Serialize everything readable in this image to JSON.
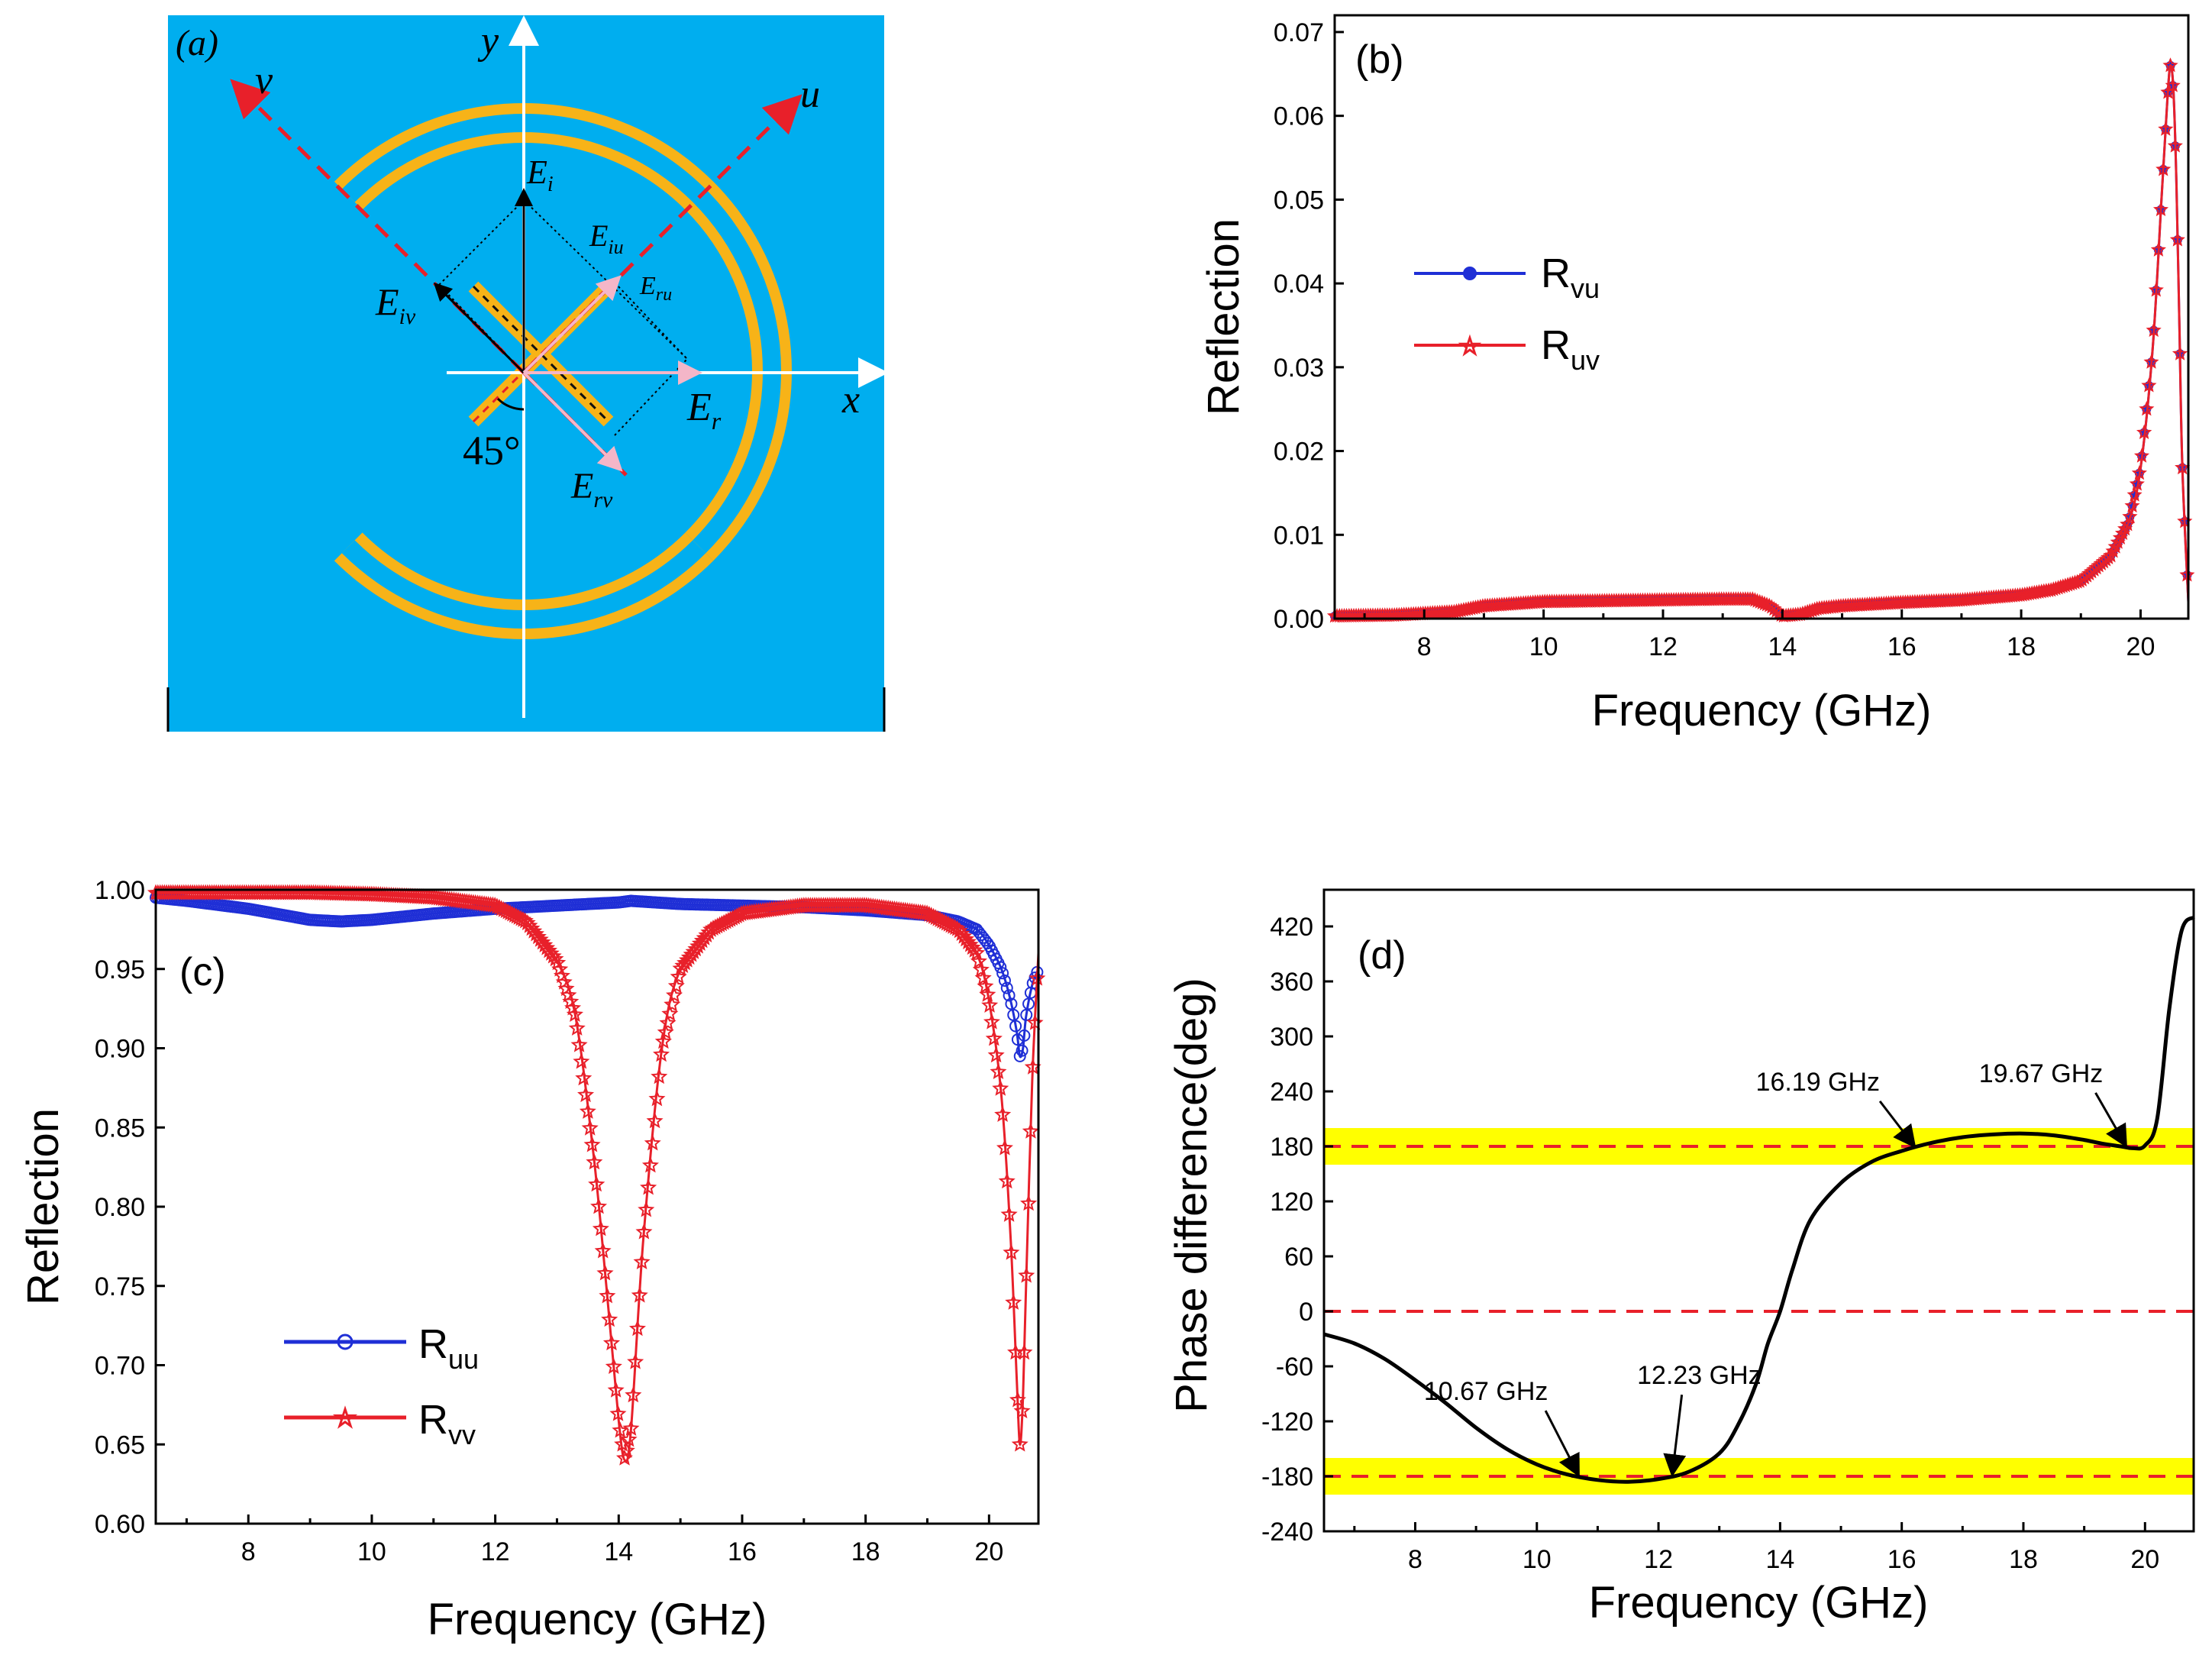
{
  "panel_a": {
    "label": "(a)",
    "axes": {
      "x": "x",
      "y": "y",
      "u": "u",
      "v": "v"
    },
    "fields": {
      "Ei": "E",
      "Ei_sub": "i",
      "Eiu": "E",
      "Eiu_sub": "iu",
      "Eiv": "E",
      "Eiv_sub": "iv",
      "Er": "E",
      "Er_sub": "r",
      "Eru": "E",
      "Eru_sub": "ru",
      "Erv": "E",
      "Erv_sub": "rv"
    },
    "angle": "45°",
    "colors": {
      "background": "#00AEEF",
      "ring": "#F7B318",
      "arrow": "#E8202A"
    }
  },
  "chart_data": [
    {
      "id": "b",
      "type": "line",
      "panel_label": "(b)",
      "xlabel": "Frequency (GHz)",
      "ylabel": "Reflection",
      "xlim": [
        6.5,
        20.8
      ],
      "ylim": [
        0,
        0.072
      ],
      "xticks": [
        8,
        10,
        12,
        14,
        16,
        18,
        20
      ],
      "yticks": [
        0.0,
        0.01,
        0.02,
        0.03,
        0.04,
        0.05,
        0.06,
        0.07
      ],
      "ytick_labels": [
        "0.00",
        "0.01",
        "0.02",
        "0.03",
        "0.04",
        "0.05",
        "0.06",
        "0.07"
      ],
      "legend": [
        {
          "main": "R",
          "sub": "vu",
          "color": "#1F2FD6",
          "marker": "dot"
        },
        {
          "main": "R",
          "sub": "uv",
          "color": "#E8202A",
          "marker": "star"
        }
      ],
      "series": [
        {
          "name": "Rvu",
          "color": "#1F2FD6",
          "x": [
            6.5,
            7.5,
            8.5,
            9,
            10,
            11,
            12,
            13,
            13.5,
            13.8,
            14,
            14.3,
            14.6,
            15,
            16,
            17,
            18,
            18.5,
            19,
            19.5,
            19.8,
            20,
            20.2,
            20.35,
            20.45,
            20.5,
            20.55,
            20.6,
            20.65,
            20.7,
            20.8
          ],
          "y": [
            0.0003,
            0.0004,
            0.0008,
            0.0015,
            0.002,
            0.0021,
            0.0022,
            0.0023,
            0.0023,
            0.0015,
            0.0003,
            0.0005,
            0.0012,
            0.0015,
            0.0019,
            0.0022,
            0.0028,
            0.0034,
            0.0045,
            0.0075,
            0.0115,
            0.018,
            0.032,
            0.05,
            0.062,
            0.066,
            0.063,
            0.052,
            0.035,
            0.018,
            0.002
          ]
        },
        {
          "name": "Ruv",
          "color": "#E8202A",
          "x": [
            6.5,
            7.5,
            8.5,
            9,
            10,
            11,
            12,
            13,
            13.5,
            13.8,
            14,
            14.3,
            14.6,
            15,
            16,
            17,
            18,
            18.5,
            19,
            19.5,
            19.8,
            20,
            20.2,
            20.35,
            20.45,
            20.5,
            20.55,
            20.6,
            20.65,
            20.7,
            20.8
          ],
          "y": [
            0.0003,
            0.0004,
            0.0008,
            0.0015,
            0.002,
            0.0021,
            0.0022,
            0.0023,
            0.0023,
            0.0015,
            0.0003,
            0.0005,
            0.0012,
            0.0015,
            0.0019,
            0.0022,
            0.0028,
            0.0034,
            0.0045,
            0.0075,
            0.0115,
            0.018,
            0.032,
            0.05,
            0.062,
            0.066,
            0.063,
            0.052,
            0.035,
            0.018,
            0.002
          ]
        }
      ]
    },
    {
      "id": "c",
      "type": "line",
      "panel_label": "(c)",
      "xlabel": "Frequency (GHz)",
      "ylabel": "Reflection",
      "xlim": [
        6.5,
        20.8
      ],
      "ylim": [
        0.6,
        1.0
      ],
      "xticks": [
        8,
        10,
        12,
        14,
        16,
        18,
        20
      ],
      "yticks": [
        0.6,
        0.65,
        0.7,
        0.75,
        0.8,
        0.85,
        0.9,
        0.95,
        1.0
      ],
      "ytick_labels": [
        "0.60",
        "0.65",
        "0.70",
        "0.75",
        "0.80",
        "0.85",
        "0.90",
        "0.95",
        "1.00"
      ],
      "legend": [
        {
          "main": "R",
          "sub": "uu",
          "color": "#1F2FD6",
          "marker": "circle"
        },
        {
          "main": "R",
          "sub": "vv",
          "color": "#E8202A",
          "marker": "star"
        }
      ],
      "series": [
        {
          "name": "Ruu",
          "color": "#1F2FD6",
          "x": [
            6.5,
            7,
            8,
            9,
            9.5,
            10,
            11,
            12,
            13,
            14,
            14.2,
            15,
            16,
            17,
            18,
            19,
            19.5,
            19.8,
            20,
            20.2,
            20.35,
            20.45,
            20.5,
            20.55,
            20.6,
            20.7,
            20.8
          ],
          "y": [
            0.995,
            0.993,
            0.988,
            0.981,
            0.98,
            0.981,
            0.985,
            0.988,
            0.99,
            0.992,
            0.993,
            0.991,
            0.99,
            0.989,
            0.987,
            0.984,
            0.98,
            0.975,
            0.965,
            0.95,
            0.93,
            0.91,
            0.895,
            0.9,
            0.92,
            0.94,
            0.95
          ]
        },
        {
          "name": "Rvv",
          "color": "#E8202A",
          "x": [
            6.5,
            8,
            9,
            10,
            11,
            12,
            12.5,
            13,
            13.3,
            13.6,
            13.8,
            14,
            14.1,
            14.2,
            14.4,
            14.7,
            15,
            15.5,
            16,
            17,
            18,
            19,
            19.5,
            19.8,
            20,
            20.2,
            20.35,
            20.45,
            20.5,
            20.55,
            20.6,
            20.7,
            20.8
          ],
          "y": [
            0.998,
            0.998,
            0.998,
            0.997,
            0.995,
            0.99,
            0.98,
            0.955,
            0.92,
            0.83,
            0.75,
            0.665,
            0.64,
            0.66,
            0.78,
            0.9,
            0.95,
            0.975,
            0.985,
            0.99,
            0.99,
            0.985,
            0.975,
            0.96,
            0.93,
            0.87,
            0.78,
            0.69,
            0.65,
            0.68,
            0.75,
            0.88,
            0.96
          ]
        }
      ]
    },
    {
      "id": "d",
      "type": "line",
      "panel_label": "(d)",
      "xlabel": "Frequency (GHz)",
      "ylabel": "Phase difference(deg)",
      "xlim": [
        6.5,
        20.8
      ],
      "ylim": [
        -240,
        460
      ],
      "xticks": [
        8,
        10,
        12,
        14,
        16,
        18,
        20
      ],
      "yticks": [
        -240,
        -180,
        -120,
        -60,
        0,
        60,
        120,
        180,
        240,
        300,
        360,
        420
      ],
      "ytick_labels": [
        "-240",
        "-180",
        "-120",
        "-60",
        "0",
        "60",
        "120",
        "180",
        "240",
        "300",
        "360",
        "420"
      ],
      "bands": [
        {
          "y0": 160,
          "y1": 200,
          "color": "#FFFF00"
        },
        {
          "y0": -200,
          "y1": -160,
          "color": "#FFFF00"
        }
      ],
      "reference_lines": [
        {
          "y": 180,
          "color": "#E8202A"
        },
        {
          "y": 0,
          "color": "#E8202A"
        },
        {
          "y": -180,
          "color": "#E8202A"
        }
      ],
      "annotations": [
        {
          "text": "10.67 GHz",
          "x": 10.67,
          "y": -180
        },
        {
          "text": "12.23 GHz",
          "x": 12.23,
          "y": -180
        },
        {
          "text": "16.19 GHz",
          "x": 16.19,
          "y": 180
        },
        {
          "text": "19.67 GHz",
          "x": 19.67,
          "y": 180
        }
      ],
      "series": [
        {
          "name": "Phase difference",
          "color": "#000000",
          "x": [
            6.5,
            7,
            7.5,
            8,
            8.5,
            9,
            9.5,
            10,
            10.5,
            11,
            11.5,
            12,
            12.5,
            13,
            13.3,
            13.6,
            13.8,
            14,
            14.2,
            14.5,
            15,
            15.5,
            16,
            16.5,
            17,
            17.5,
            18,
            18.5,
            19,
            19.3,
            19.6,
            19.8,
            20,
            20.2,
            20.4,
            20.6,
            20.8
          ],
          "y": [
            -25,
            -35,
            -52,
            -75,
            -100,
            -127,
            -150,
            -167,
            -178,
            -184,
            -186,
            -183,
            -175,
            -155,
            -125,
            -80,
            -35,
            0,
            45,
            100,
            140,
            163,
            175,
            184,
            190,
            193,
            194,
            192,
            187,
            183,
            180,
            178,
            181,
            210,
            330,
            415,
            430
          ]
        }
      ]
    }
  ]
}
